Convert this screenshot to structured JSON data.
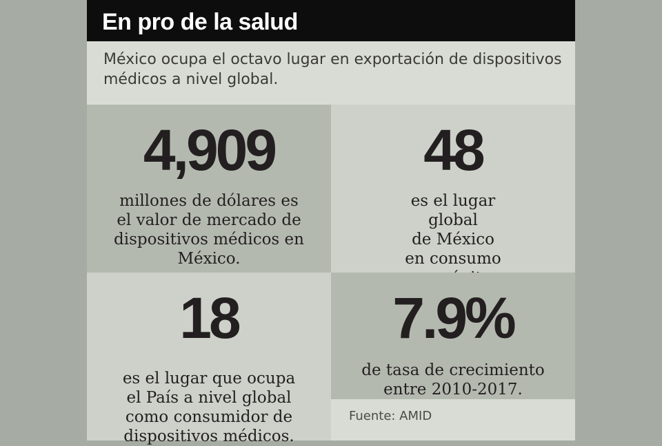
{
  "title": "En pro de la salud",
  "intro": "México ocupa el octavo lugar en exportación de dispositivos médicos a nivel global.",
  "stats": [
    {
      "value": "4,909",
      "lines": [
        "millones de dólares es",
        "el valor de mercado de",
        "dispositivos médicos en",
        "México."
      ]
    },
    {
      "value": "48",
      "lines": [
        "es el lugar global",
        "de México",
        "en consumo",
        "per cápita."
      ]
    },
    {
      "value": "18",
      "lines": [
        "es el lugar que ocupa",
        "el País a nivel global",
        "como consumidor de",
        "dispositivos médicos."
      ]
    },
    {
      "value": "7.9%",
      "lines": [
        "de tasa de crecimiento",
        "entre 2010-2017."
      ]
    }
  ],
  "source": "Fuente: AMID",
  "colors": {
    "title_bg": "#0d0d0d",
    "card_bg": "#d9dcd5",
    "cell_dark": "#b4b9b0",
    "cell_light": "#cdd1c9",
    "outer_bg": "#a6aca3"
  }
}
